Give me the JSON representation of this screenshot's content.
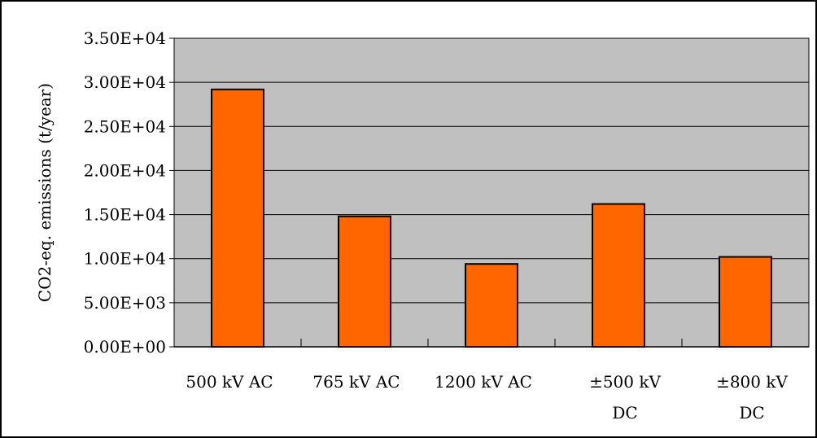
{
  "chart_data": {
    "type": "bar",
    "categories": [
      [
        "500 kV AC"
      ],
      [
        "765 kV AC"
      ],
      [
        "1200 kV AC"
      ],
      [
        "±500 kV",
        "DC"
      ],
      [
        "±800 kV",
        "DC"
      ]
    ],
    "values": [
      29200,
      14800,
      9400,
      16200,
      10200
    ],
    "ylabel": "CO2-eq. emissions (t/year)",
    "ylim": [
      0,
      35000
    ],
    "yticks": [
      0,
      5000,
      10000,
      15000,
      20000,
      25000,
      30000,
      35000
    ],
    "ytick_labels": [
      "0.00E+00",
      "5.00E+03",
      "1.00E+04",
      "1.50E+04",
      "2.00E+04",
      "2.50E+04",
      "3.00E+04",
      "3.50E+04"
    ],
    "grid": true,
    "legend": false,
    "colors": {
      "bar": "#ff6600",
      "plot_background": "#c0c0c0",
      "gridline": "#000000",
      "frame": "#000000"
    }
  }
}
